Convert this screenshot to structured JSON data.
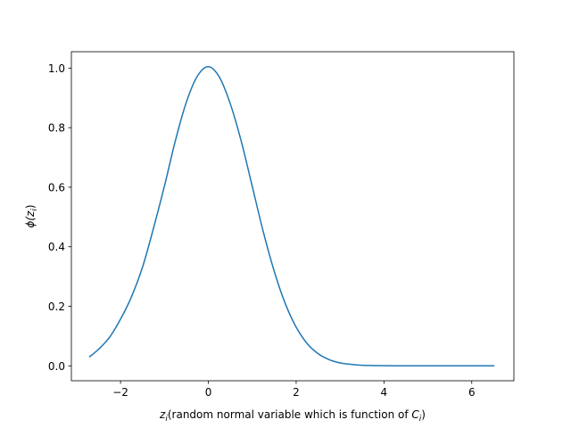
{
  "chart_data": {
    "type": "line",
    "title": "",
    "xlabel_var": "z",
    "xlabel_var_sub": "i",
    "xlabel_text": "(random normal variable which is function of ",
    "xlabel_c": "C",
    "xlabel_c_sub": "i",
    "xlabel_close": ")",
    "ylabel_func": "ϕ(",
    "ylabel_var": "z",
    "ylabel_sub": "i",
    "ylabel_close": ")",
    "xlim": [
      -3.12,
      6.96
    ],
    "ylim": [
      -0.05,
      1.055
    ],
    "xticks": [
      -2,
      0,
      2,
      4,
      6
    ],
    "xtick_labels": [
      "−2",
      "0",
      "2",
      "4",
      "6"
    ],
    "yticks": [
      0.0,
      0.2,
      0.4,
      0.6,
      0.8,
      1.0
    ],
    "ytick_labels": [
      "0.0",
      "0.2",
      "0.4",
      "0.6",
      "0.8",
      "1.0"
    ],
    "grid": false,
    "series": [
      {
        "color": "#1f77b4",
        "x": [
          -2.7,
          -2.5,
          -2.25,
          -2.0,
          -1.75,
          -1.5,
          -1.25,
          -1.0,
          -0.75,
          -0.5,
          -0.25,
          0.0,
          0.25,
          0.5,
          0.75,
          1.0,
          1.25,
          1.5,
          1.75,
          2.0,
          2.25,
          2.5,
          2.75,
          3.0,
          3.25,
          3.5,
          3.75,
          4.0,
          4.5,
          5.0,
          5.5,
          6.0,
          6.5
        ],
        "y": [
          0.031,
          0.056,
          0.096,
          0.157,
          0.232,
          0.331,
          0.462,
          0.604,
          0.757,
          0.886,
          0.973,
          1.005,
          0.97,
          0.88,
          0.754,
          0.603,
          0.451,
          0.318,
          0.21,
          0.13,
          0.075,
          0.041,
          0.021,
          0.01,
          0.005,
          0.002,
          0.001,
          0.0005,
          0.0001,
          0.0,
          0.0,
          0.0,
          0.0
        ]
      }
    ]
  }
}
